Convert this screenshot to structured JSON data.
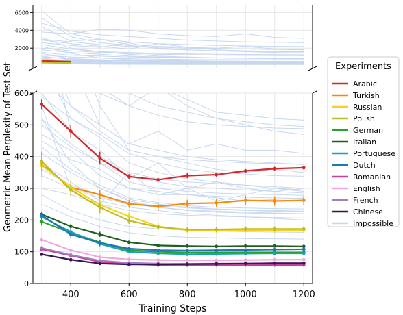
{
  "chart_data": {
    "type": "line",
    "broken_axis": true,
    "title": "",
    "xlabel": "Training Steps",
    "ylabel": "Geometric Mean Perplexity of Test Set",
    "x": [
      300,
      400,
      500,
      600,
      700,
      800,
      900,
      1000,
      1100,
      1200
    ],
    "xticks": [
      "400",
      "600",
      "800",
      "1000",
      "1200"
    ],
    "xlim": [
      270,
      1230
    ],
    "upper_ylim": [
      -300,
      6800
    ],
    "upper_yticks": [
      "2000",
      "4000",
      "6000"
    ],
    "lower_ylim": [
      0,
      600
    ],
    "lower_yticks": [
      "0",
      "100",
      "200",
      "300",
      "400",
      "500",
      "600"
    ],
    "grid": true,
    "legend": {
      "title": "Experiments",
      "placement": "outside-right"
    },
    "series": [
      {
        "name": "Arabic",
        "color": "#d62728",
        "values": [
          565,
          480,
          395,
          337,
          327,
          340,
          343,
          355,
          362,
          365
        ],
        "err": [
          15,
          20,
          20,
          8,
          6,
          8,
          6,
          6,
          6,
          6
        ]
      },
      {
        "name": "Turkish",
        "color": "#f58a0b",
        "values": [
          375,
          303,
          280,
          251,
          243,
          252,
          254,
          262,
          260,
          262
        ],
        "err": [
          40,
          15,
          15,
          12,
          12,
          12,
          12,
          15,
          15,
          15
        ]
      },
      {
        "name": "Russian",
        "color": "#f5d21c",
        "values": [
          372,
          303,
          248,
          212,
          180,
          168,
          168,
          168,
          168,
          168
        ],
        "err": [
          35,
          20,
          18,
          12,
          12,
          8,
          8,
          8,
          8,
          8
        ]
      },
      {
        "name": "Polish",
        "color": "#bcbd22",
        "values": [
          385,
          295,
          240,
          198,
          178,
          170,
          170,
          172,
          172,
          172
        ],
        "err": [
          30,
          20,
          18,
          10,
          8,
          8,
          8,
          8,
          8,
          8
        ]
      },
      {
        "name": "German",
        "color": "#2ca02c",
        "values": [
          195,
          160,
          130,
          105,
          100,
          98,
          98,
          98,
          98,
          98
        ],
        "err": [
          12,
          10,
          8,
          5,
          5,
          4,
          4,
          4,
          4,
          4
        ]
      },
      {
        "name": "Italian",
        "color": "#1f5e1f",
        "values": [
          218,
          180,
          155,
          130,
          120,
          118,
          117,
          118,
          118,
          117
        ],
        "err": [
          8,
          8,
          8,
          5,
          4,
          4,
          4,
          4,
          4,
          4
        ]
      },
      {
        "name": "Portuguese",
        "color": "#17a2b8",
        "values": [
          210,
          163,
          125,
          100,
          95,
          92,
          93,
          94,
          95,
          95
        ],
        "err": [
          12,
          10,
          8,
          5,
          5,
          5,
          5,
          5,
          5,
          5
        ]
      },
      {
        "name": "Dutch",
        "color": "#1f77b4",
        "values": [
          215,
          155,
          128,
          110,
          105,
          104,
          105,
          106,
          107,
          108
        ],
        "err": [
          12,
          10,
          8,
          5,
          5,
          5,
          5,
          5,
          5,
          5
        ]
      },
      {
        "name": "Romanian",
        "color": "#c2419a",
        "values": [
          108,
          88,
          68,
          62,
          58,
          58,
          58,
          58,
          58,
          58
        ],
        "err": [
          6,
          5,
          4,
          3,
          3,
          3,
          3,
          3,
          3,
          3
        ]
      },
      {
        "name": "English",
        "color": "#f2a7dd",
        "values": [
          138,
          105,
          83,
          76,
          74,
          73,
          73,
          74,
          75,
          75
        ],
        "err": [
          6,
          5,
          4,
          3,
          3,
          3,
          3,
          3,
          3,
          3
        ]
      },
      {
        "name": "French",
        "color": "#a27cc0",
        "values": [
          112,
          90,
          72,
          65,
          63,
          62,
          63,
          63,
          64,
          64
        ],
        "err": [
          6,
          5,
          4,
          3,
          3,
          3,
          3,
          3,
          3,
          3
        ]
      },
      {
        "name": "Chinese",
        "color": "#3b1454",
        "values": [
          92,
          75,
          63,
          60,
          60,
          61,
          62,
          63,
          64,
          64
        ],
        "err": [
          4,
          4,
          3,
          3,
          3,
          3,
          3,
          3,
          3,
          3
        ]
      },
      {
        "name": "Impossible",
        "color": "#c6d7ef"
      }
    ],
    "impossible_lines": [
      [
        560,
        300,
        250,
        350,
        280,
        300,
        260,
        280,
        300,
        290
      ],
      [
        900,
        480,
        420,
        330,
        380,
        300,
        320,
        300,
        290,
        300
      ],
      [
        1400,
        800,
        560,
        420,
        400,
        380,
        360,
        350,
        360,
        350
      ],
      [
        450,
        390,
        360,
        300,
        280,
        280,
        270,
        260,
        265,
        270
      ],
      [
        620,
        700,
        500,
        440,
        480,
        420,
        440,
        420,
        420,
        410
      ],
      [
        2200,
        1400,
        900,
        700,
        620,
        560,
        520,
        500,
        480,
        470
      ],
      [
        380,
        320,
        260,
        240,
        230,
        220,
        215,
        210,
        205,
        200
      ],
      [
        700,
        520,
        460,
        380,
        350,
        330,
        320,
        310,
        300,
        295
      ],
      [
        3200,
        2000,
        1600,
        1300,
        1100,
        1000,
        900,
        850,
        800,
        780
      ],
      [
        5400,
        3300,
        2600,
        2300,
        2000,
        1800,
        1700,
        1600,
        1500,
        1450
      ],
      [
        4400,
        2800,
        3000,
        2400,
        2200,
        2100,
        2000,
        2200,
        1900,
        1800
      ],
      [
        3800,
        3600,
        4100,
        4000,
        3600,
        3400,
        3300,
        3600,
        3200,
        3100
      ],
      [
        2600,
        2300,
        2100,
        2600,
        1900,
        1800,
        1700,
        1650,
        1600,
        1550
      ],
      [
        1800,
        1500,
        1300,
        1100,
        1000,
        950,
        900,
        880,
        870,
        860
      ],
      [
        1200,
        1000,
        900,
        800,
        760,
        720,
        700,
        690,
        680,
        670
      ],
      [
        500,
        430,
        380,
        340,
        320,
        305,
        300,
        295,
        290,
        285
      ],
      [
        430,
        360,
        310,
        270,
        255,
        245,
        240,
        238,
        236,
        235
      ],
      [
        600,
        480,
        400,
        350,
        330,
        320,
        315,
        310,
        305,
        300
      ],
      [
        340,
        300,
        270,
        250,
        240,
        232,
        228,
        225,
        222,
        220
      ],
      [
        800,
        560,
        500,
        440,
        420,
        400,
        390,
        385,
        380,
        375
      ],
      [
        2900,
        2500,
        2200,
        1900,
        2500,
        2100,
        1800,
        1700,
        1650,
        1600
      ],
      [
        4800,
        3900,
        3500,
        3300,
        3100,
        2900,
        2800,
        2700,
        2650,
        2600
      ],
      [
        3000,
        2700,
        2400,
        2200,
        2100,
        2000,
        1950,
        1900,
        1850,
        1800
      ],
      [
        2000,
        1700,
        1500,
        1400,
        1300,
        1250,
        1200,
        1180,
        1160,
        1150
      ],
      [
        1500,
        1200,
        1100,
        1000,
        950,
        920,
        900,
        880,
        870,
        860
      ],
      [
        1000,
        820,
        700,
        600,
        560,
        540,
        520,
        510,
        500,
        495
      ],
      [
        520,
        440,
        380,
        320,
        300,
        290,
        285,
        282,
        280,
        278
      ],
      [
        470,
        420,
        340,
        300,
        290,
        280,
        275,
        272,
        270,
        268
      ],
      [
        650,
        560,
        480,
        420,
        400,
        390,
        385,
        380,
        378,
        375
      ],
      [
        590,
        520,
        470,
        410,
        380,
        360,
        350,
        345,
        340,
        338
      ],
      [
        410,
        350,
        300,
        265,
        250,
        240,
        235,
        232,
        230,
        228
      ],
      [
        360,
        310,
        280,
        255,
        245,
        238,
        234,
        230,
        228,
        226
      ],
      [
        1100,
        700,
        620,
        560,
        530,
        510,
        500,
        495,
        490,
        488
      ],
      [
        2400,
        1900,
        1600,
        1500,
        1400,
        1350,
        1300,
        1280,
        1260,
        1250
      ],
      [
        6200,
        3600,
        3000,
        2700,
        2500,
        2400,
        2300,
        2250,
        2200,
        2180
      ],
      [
        700,
        640,
        600,
        560,
        620,
        580,
        540,
        530,
        520,
        515
      ],
      [
        300,
        280,
        250,
        230,
        220,
        215,
        212,
        210,
        208,
        206
      ],
      [
        280,
        230,
        200,
        180,
        172,
        168,
        165,
        163,
        162,
        161
      ],
      [
        250,
        210,
        180,
        160,
        150,
        146,
        144,
        142,
        141,
        140
      ],
      [
        520,
        380,
        300,
        260,
        240,
        230,
        225,
        222,
        220,
        219
      ]
    ]
  }
}
